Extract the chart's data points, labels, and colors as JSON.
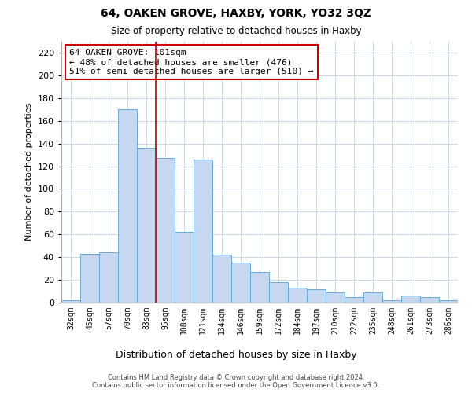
{
  "title": "64, OAKEN GROVE, HAXBY, YORK, YO32 3QZ",
  "subtitle": "Size of property relative to detached houses in Haxby",
  "xlabel": "Distribution of detached houses by size in Haxby",
  "ylabel": "Number of detached properties",
  "categories": [
    "32sqm",
    "45sqm",
    "57sqm",
    "70sqm",
    "83sqm",
    "95sqm",
    "108sqm",
    "121sqm",
    "134sqm",
    "146sqm",
    "159sqm",
    "172sqm",
    "184sqm",
    "197sqm",
    "210sqm",
    "222sqm",
    "235sqm",
    "248sqm",
    "261sqm",
    "273sqm",
    "286sqm"
  ],
  "values": [
    2,
    43,
    44,
    170,
    136,
    127,
    62,
    126,
    42,
    35,
    27,
    18,
    13,
    12,
    9,
    5,
    9,
    2,
    6,
    5,
    2
  ],
  "bar_color": "#c5d8ef",
  "bar_edge_color": "#6aaad4",
  "annotation_text": "64 OAKEN GROVE: 101sqm\n← 48% of detached houses are smaller (476)\n51% of semi-detached houses are larger (510) →",
  "annotation_box_color": "#ffffff",
  "annotation_box_edge_color": "#cc0000",
  "vline_color": "#cc0000",
  "vline_x": 4.5,
  "footer_line1": "Contains HM Land Registry data © Crown copyright and database right 2024.",
  "footer_line2": "Contains public sector information licensed under the Open Government Licence v3.0.",
  "bg_color": "#ffffff",
  "grid_color": "#c8d8e8",
  "ylim": [
    0,
    230
  ],
  "yticks": [
    0,
    20,
    40,
    60,
    80,
    100,
    120,
    140,
    160,
    180,
    200,
    220
  ]
}
